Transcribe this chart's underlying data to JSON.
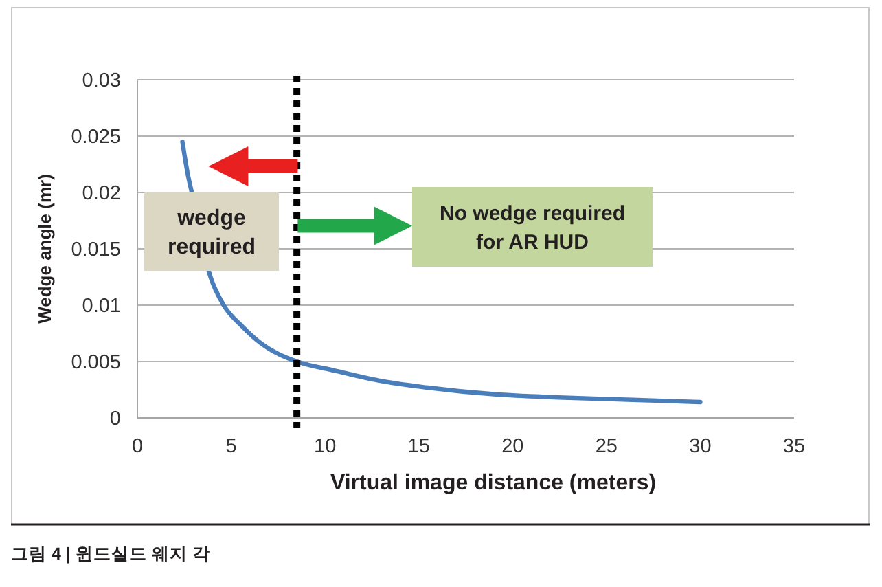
{
  "chart_data": {
    "type": "line",
    "xlabel": "Virtual image distance (meters)",
    "ylabel": "Wedge angle (mr)",
    "x": [
      2.4,
      2.7,
      2.9,
      3.9,
      4.6,
      5.6,
      6.6,
      7.6,
      8.5,
      10.5,
      12.9,
      15.4,
      19,
      22.7,
      26.4,
      30
    ],
    "series": [
      {
        "color": "#4a7ebb",
        "values": [
          0.0245,
          0.0215,
          0.02,
          0.0125,
          0.01,
          0.0081,
          0.0066,
          0.0056,
          0.005,
          0.0042,
          0.0033,
          0.0027,
          0.0021,
          0.0018,
          0.0016,
          0.0014
        ]
      }
    ],
    "xlim": [
      0,
      35
    ],
    "ylim": [
      0,
      0.03
    ],
    "xticks": [
      0,
      5,
      10,
      15,
      20,
      25,
      30,
      35
    ],
    "yticks": [
      0,
      0.005,
      0.01,
      0.015,
      0.02,
      0.025,
      0.03
    ],
    "grid": "y",
    "ref_lines": [
      {
        "axis": "x",
        "value": 8.5,
        "color": "#000000",
        "line_style": "dotted"
      }
    ],
    "annotations": [
      "wedge required",
      "No wedge required for AR HUD",
      "그림 4 | 윈드실드 웨지 각"
    ]
  }
}
